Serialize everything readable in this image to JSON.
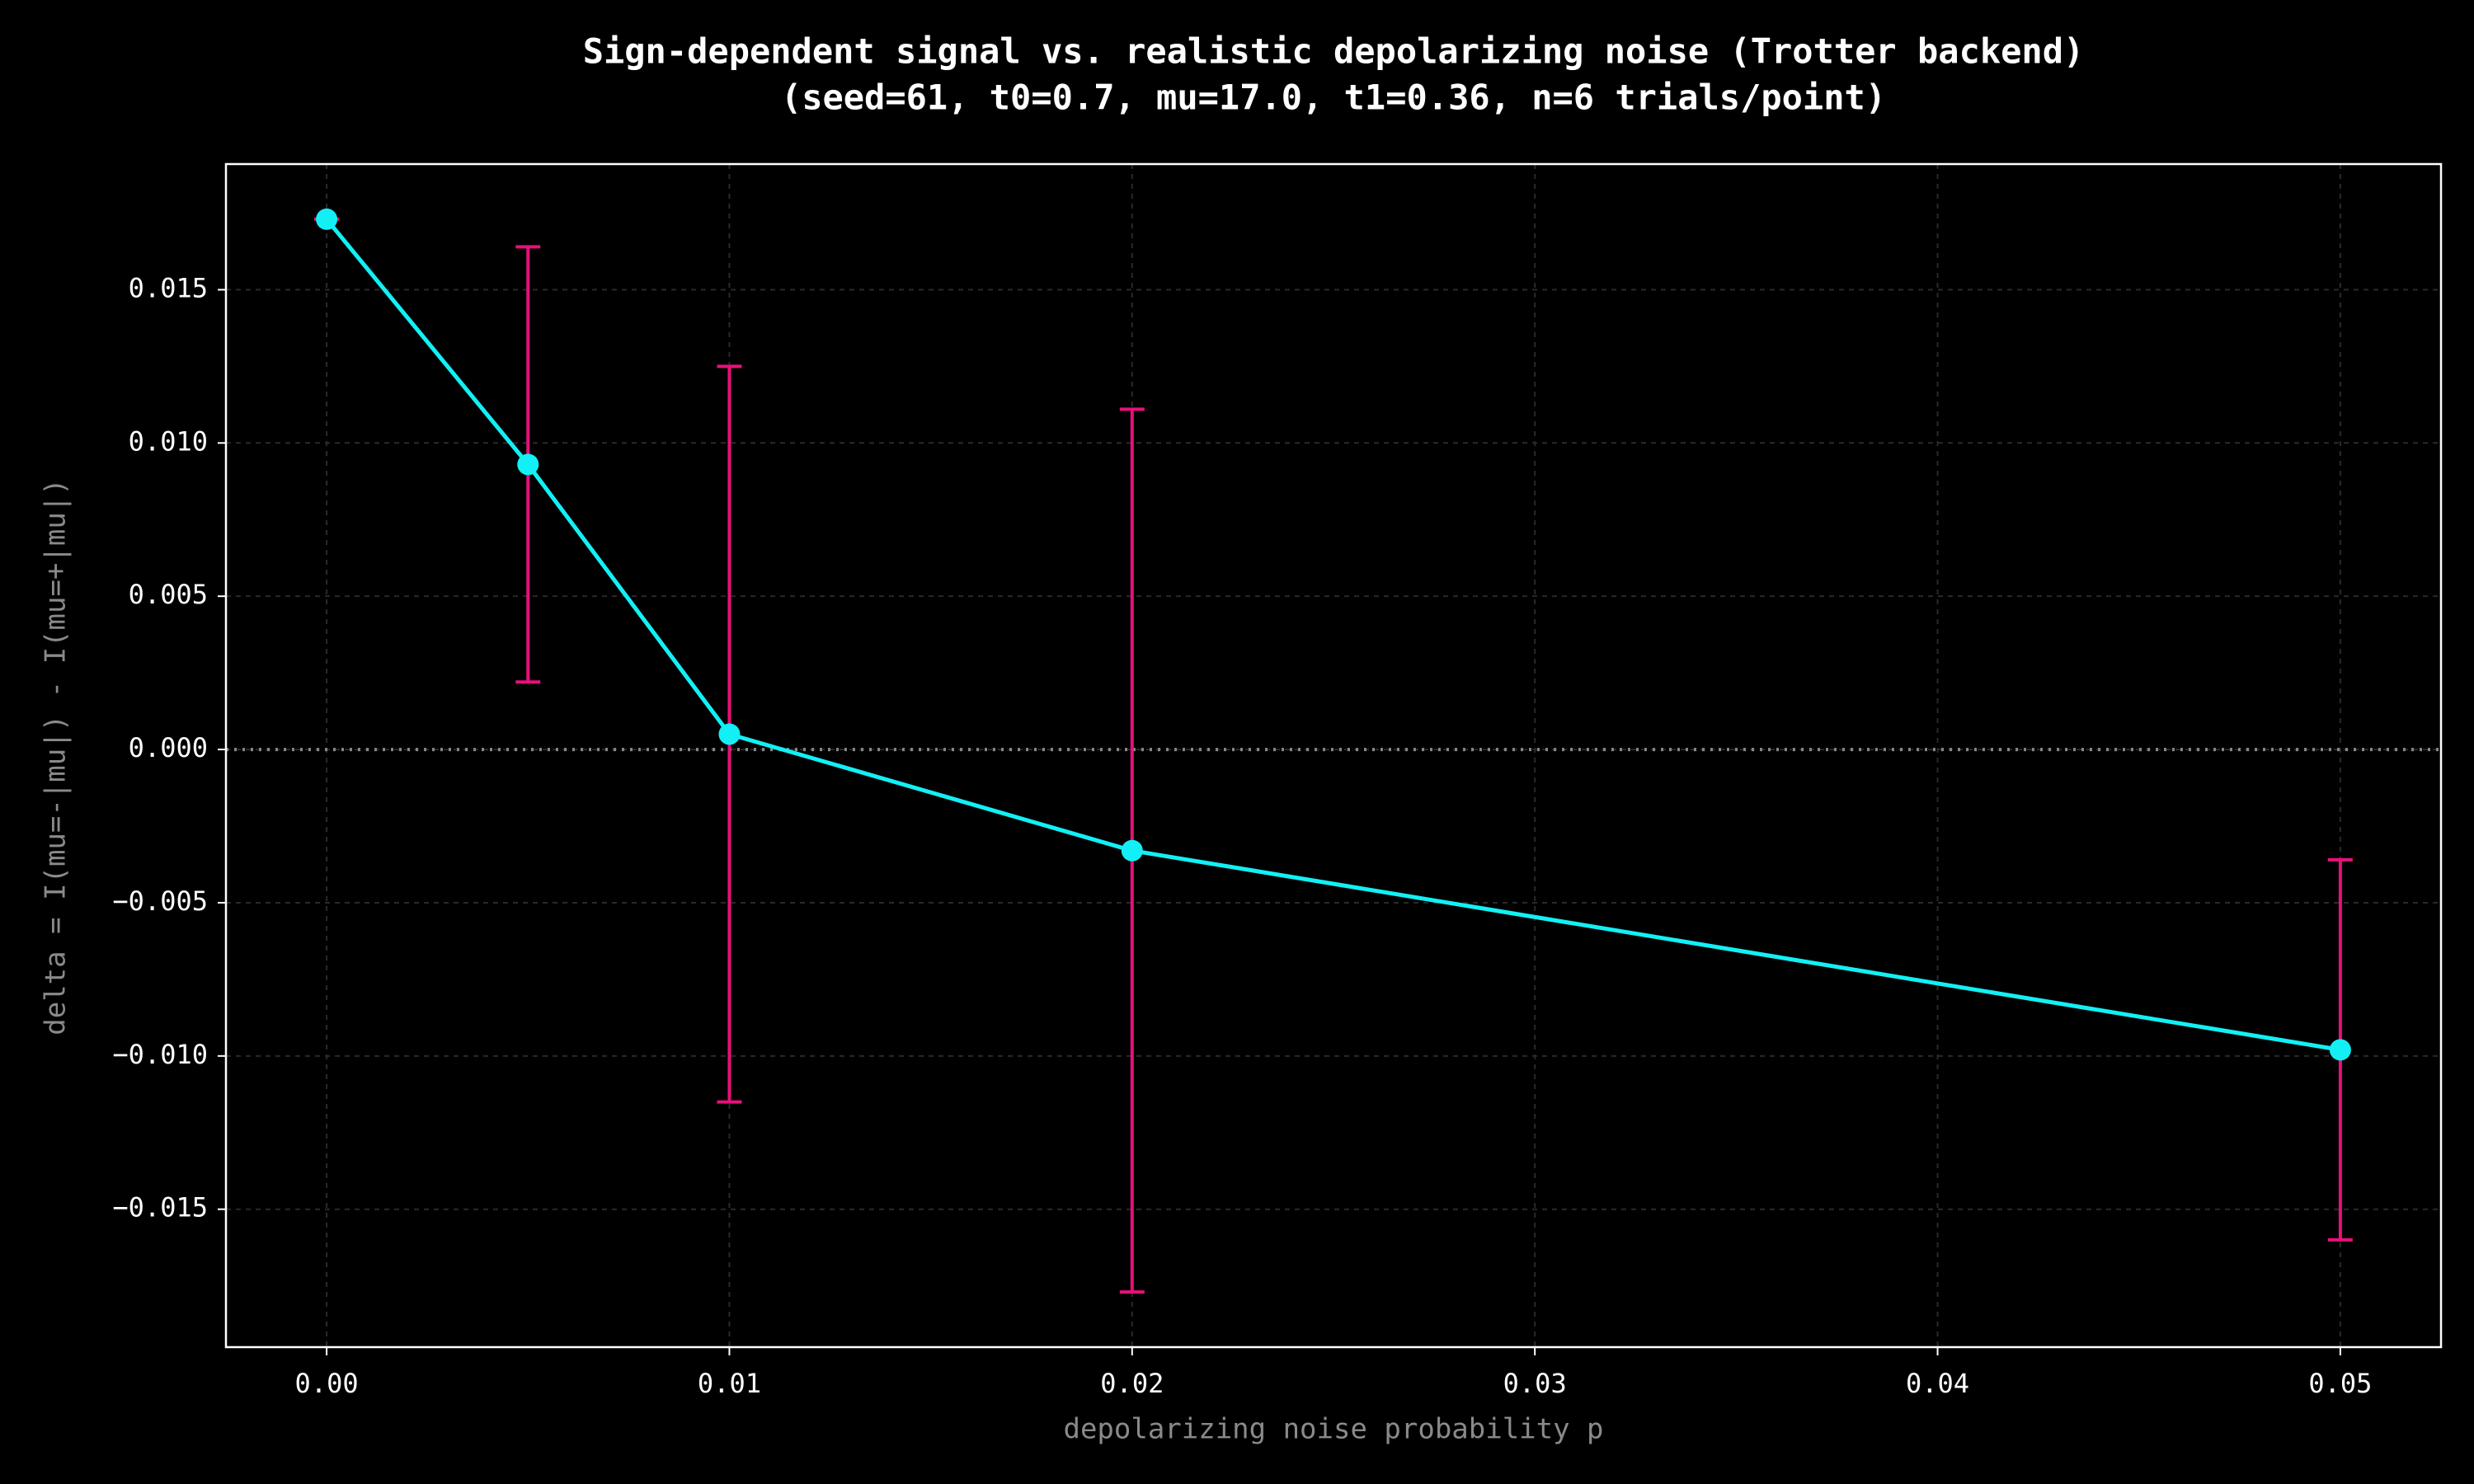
{
  "chart_data": {
    "type": "errorbar-line",
    "title": "Sign-dependent signal vs. realistic depolarizing noise (Trotter backend)",
    "subtitle": "(seed=61, t0=0.7, mu=17.0, t1=0.36, n=6 trials/point)",
    "x_label": "depolarizing noise probability p",
    "y_label": "delta = I(mu=-|mu|) - I(mu=+|mu|)",
    "x": [
      0,
      0.005,
      0.01,
      0.02,
      0.05
    ],
    "values": [
      0.0173,
      0.0093,
      0.0005,
      -0.0033,
      -0.0098
    ],
    "errors": [
      0,
      0.0071,
      0.012,
      0.0144,
      0.0062
    ],
    "color": "#12f0f5",
    "error_color": "#e8107a",
    "reference_line": 0,
    "xlim": [
      -0.0025,
      0.0525
    ],
    "ylim": [
      -0.0195,
      0.0191
    ],
    "xticks": [
      {
        "value": 0,
        "label": "0.00"
      },
      {
        "value": 0.01,
        "label": "0.01"
      },
      {
        "value": 0.02,
        "label": "0.02"
      },
      {
        "value": 0.03,
        "label": "0.03"
      },
      {
        "value": 0.04,
        "label": "0.04"
      },
      {
        "value": 0.05,
        "label": "0.05"
      }
    ],
    "yticks": [
      {
        "value": -0.015,
        "label": "−0.015"
      },
      {
        "value": -0.01,
        "label": "−0.010"
      },
      {
        "value": -0.005,
        "label": "−0.005"
      },
      {
        "value": 0,
        "label": "0.000"
      },
      {
        "value": 0.005,
        "label": "0.005"
      },
      {
        "value": 0.01,
        "label": "0.010"
      },
      {
        "value": 0.015,
        "label": "0.015"
      }
    ],
    "grid": true
  }
}
